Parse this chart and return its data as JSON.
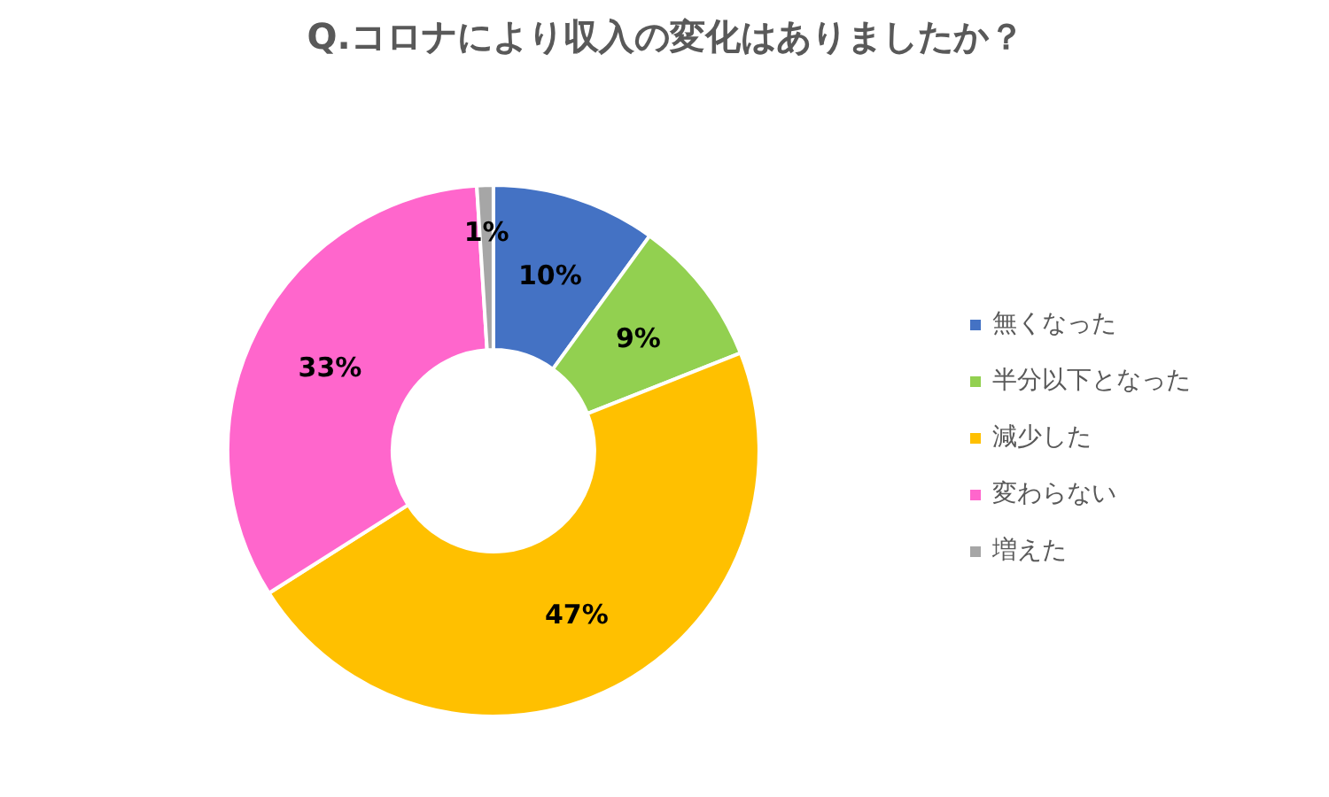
{
  "chart_data": {
    "type": "donut",
    "title": "Q.コロナにより収入の変化はありましたか？",
    "categories": [
      "無くなった",
      "半分以下となった",
      "減少した",
      "変わらない",
      "増えた"
    ],
    "values": [
      10,
      9,
      47,
      33,
      1
    ],
    "value_labels": [
      "10%",
      "9%",
      "47%",
      "33%",
      "1%"
    ],
    "colors": [
      "#4472c4",
      "#92d050",
      "#ffc000",
      "#ff66cc",
      "#a6a6a6"
    ],
    "legend": "right"
  }
}
